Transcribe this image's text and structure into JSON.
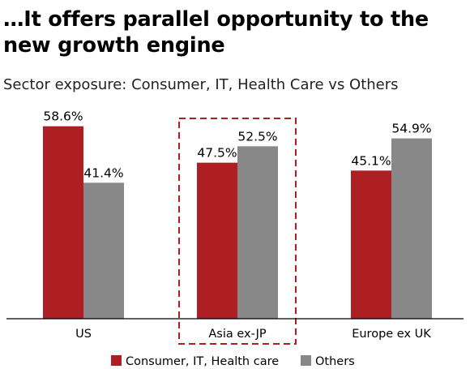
{
  "header": {
    "title_line1": "…It offers parallel opportunity to the",
    "title_line2": "new growth engine",
    "subtitle": "Sector exposure: Consumer, IT, Health Care vs Others"
  },
  "chart_data": {
    "type": "bar",
    "categories": [
      "US",
      "Asia ex-JP",
      "Europe ex UK"
    ],
    "series": [
      {
        "name": "Consumer, IT, Health care",
        "values": [
          58.6,
          47.5,
          45.1
        ],
        "labels": [
          "58.6%",
          "47.5%",
          "45.1%"
        ],
        "color": "#ad1f23"
      },
      {
        "name": "Others",
        "values": [
          41.4,
          52.5,
          54.9
        ],
        "labels": [
          "41.4%",
          "52.5%",
          "54.9%"
        ],
        "color": "#888888"
      }
    ],
    "ylim": [
      0,
      60
    ],
    "highlighted_category": "Asia ex-JP",
    "highlight_style": "dashed box",
    "highlight_color": "#ad1f23",
    "legend_position": "bottom",
    "axis_color": "#000000"
  }
}
